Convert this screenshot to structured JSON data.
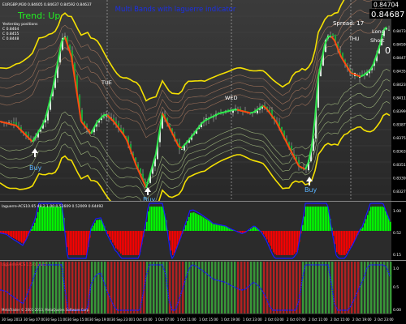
{
  "header": {
    "symbol_line": "EURGBP,M30 0.84605 0.84637 0.84592 0.84637",
    "trend_text": "Trend: Up",
    "info_lines": [
      "Yesterday positions",
      "C 0.8464",
      "C 0.8455",
      "C 0.8448"
    ]
  },
  "main": {
    "title": "Multi Bands with laguerre indicator",
    "spread_label": "Spread: 17",
    "long_label": "Long",
    "short_label": "Short",
    "long_short_value": "0",
    "price_tag_top": "0.84704",
    "price_tag_bid": "0.84687",
    "day_labels": [
      "TUE",
      "WED",
      "THU"
    ],
    "buy_label": "Buy",
    "y_axis_labels": [
      "0.84704",
      "0.84730",
      "0.84590",
      "0.84470",
      "0.84350",
      "0.84230",
      "0.84110",
      "0.83990",
      "0.83870",
      "0.83750",
      "0.83630",
      "0.83510",
      "0.83390",
      "0.83270"
    ]
  },
  "laguerre_panel": {
    "label": "laguerre-ACS10.65 49.2 1.00 0.52609 0.52009 0.64492",
    "axis_labels": [
      "1.00",
      "0.52",
      "0.15"
    ]
  },
  "lower_panel": {
    "label": "laguerre-ACS 1.5 0.1 1.5",
    "axis_labels": [
      "1.0",
      "0.5",
      "0.00"
    ],
    "copyright": "MetaTrader © 2001-2013, MetaQuotes Software Corp."
  },
  "time_axis": [
    "30 Sep 2013",
    "30 Sep 07:00",
    "30 Sep 11:00",
    "30 Sep 15:00",
    "30 Sep 19:00",
    "30 Sep 23:00",
    "1 Oct 03:00",
    "1 Oct 07:00",
    "1 Oct 11:00",
    "1 Oct 15:00",
    "1 Oct 19:00",
    "1 Oct 23:00",
    "2 Oct 03:00",
    "2 Oct 07:00",
    "2 Oct 11:00",
    "2 Oct 15:00",
    "2 Oct 19:00",
    "2 Oct 23:00"
  ],
  "colors": {
    "bull_candle": "#22c64a",
    "bear_candle": "#ff2a00",
    "band_outer": "#ffea00",
    "band_inner": "#c8e89a",
    "laguerre_line": "#1a1aff",
    "histogram_up": "#00ff00",
    "histogram_down": "#ff0000",
    "panel_bg": "#2b2b2b"
  }
}
